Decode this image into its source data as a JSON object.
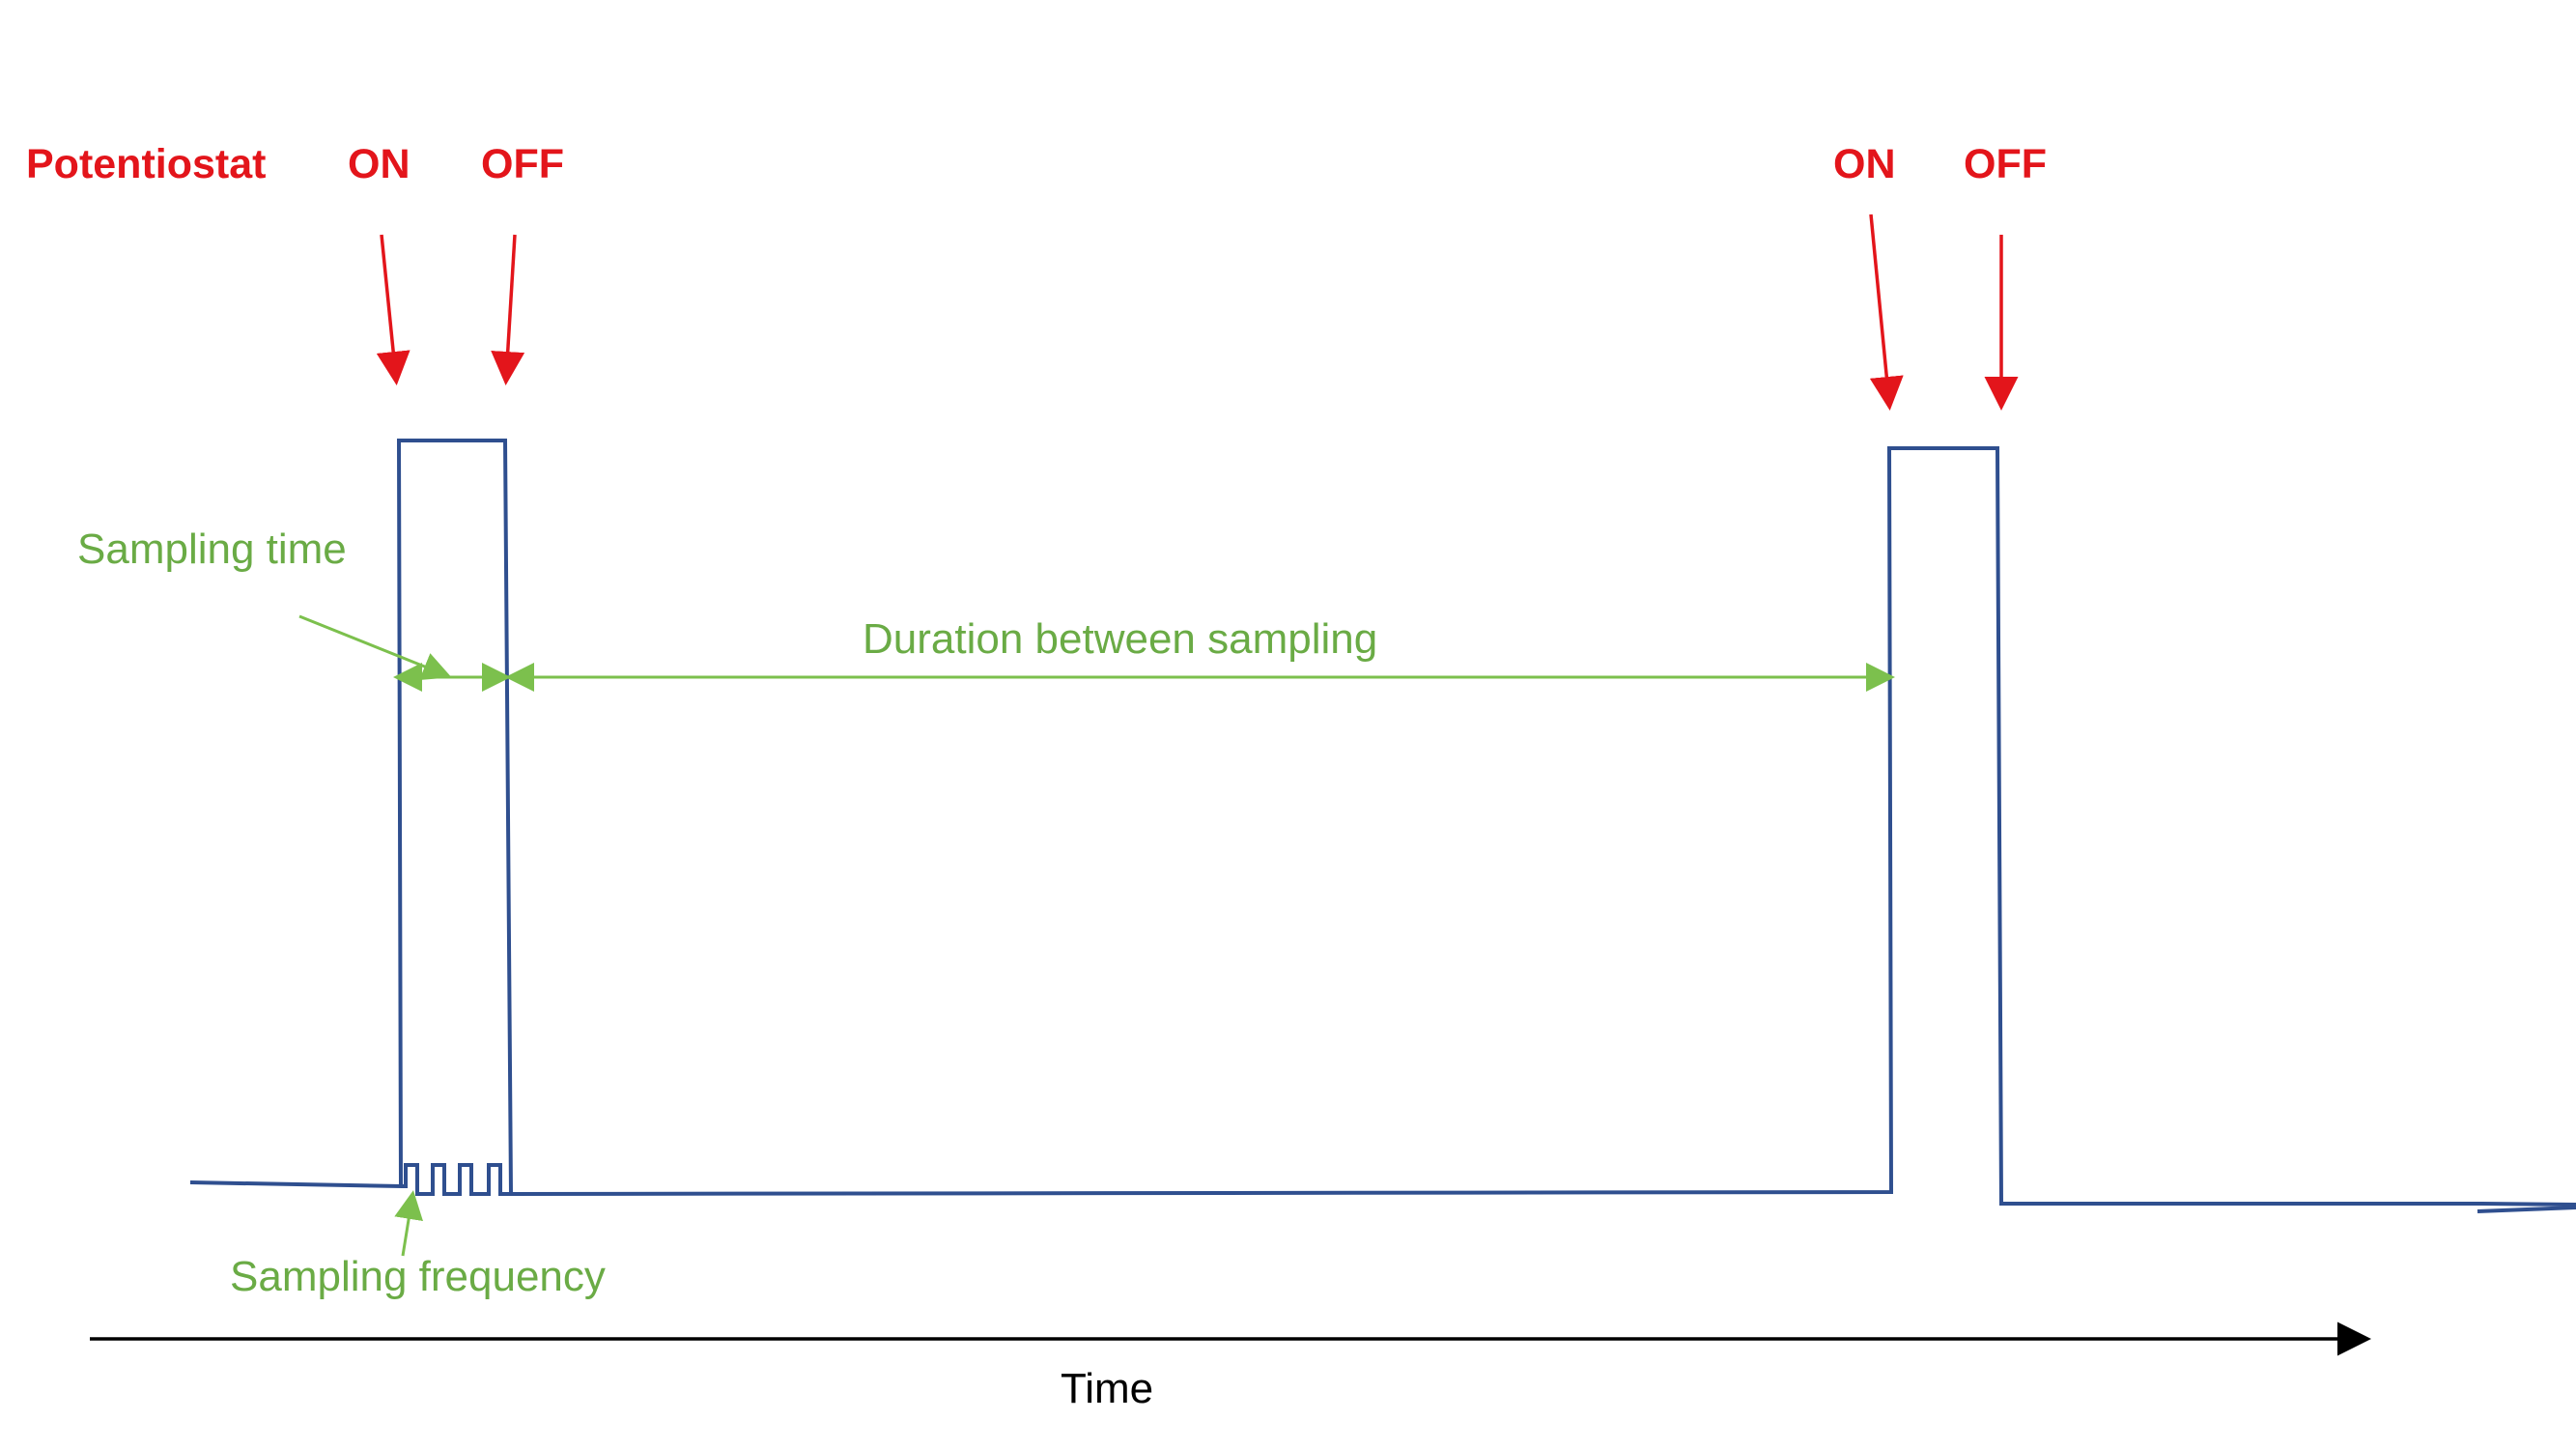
{
  "labels": {
    "potentiostat": "Potentiostat",
    "on_first": "ON",
    "off_first": "OFF",
    "on_second": "ON",
    "off_second": "OFF",
    "sampling_time": "Sampling time",
    "duration_between_sampling": "Duration between sampling",
    "sampling_frequency": "Sampling frequency",
    "time_axis": "Time"
  },
  "colors": {
    "red": "#e3151b",
    "green": "#7cc04d",
    "green_text": "#6aab45",
    "signal": "#2f4f8f",
    "axis": "#000000",
    "background": "#ffffff"
  }
}
